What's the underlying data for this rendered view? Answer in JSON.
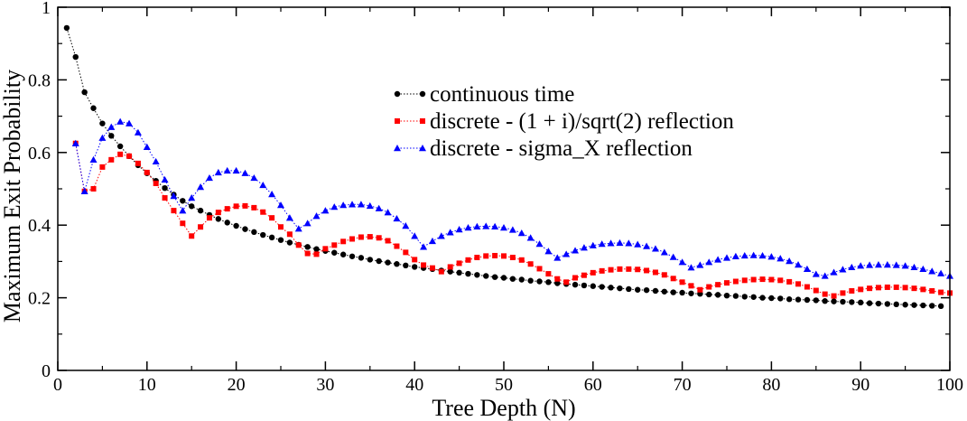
{
  "chart_data": {
    "type": "line",
    "title": "",
    "xlabel": "Tree Depth (N)",
    "ylabel": "Maximum Exit Probability",
    "xlim": [
      0,
      100
    ],
    "ylim": [
      0,
      1
    ],
    "x_ticks": [
      0,
      10,
      20,
      30,
      40,
      50,
      60,
      70,
      80,
      90,
      100
    ],
    "y_ticks": [
      0,
      0.2,
      0.4,
      0.6,
      0.8,
      1
    ],
    "y_tick_labels": [
      "0",
      "0.2",
      "0.4",
      "0.6",
      "0.8",
      "1"
    ],
    "grid": false,
    "legend_position": "top-center",
    "series": [
      {
        "name": "continuous time",
        "color": "#000000",
        "marker": "circle",
        "x": [
          1,
          2,
          3,
          4,
          5,
          6,
          7,
          8,
          9,
          10,
          11,
          12,
          13,
          14,
          15,
          16,
          17,
          18,
          19,
          20,
          21,
          22,
          23,
          24,
          25,
          26,
          27,
          28,
          29,
          30,
          31,
          32,
          33,
          34,
          35,
          36,
          37,
          38,
          39,
          40,
          41,
          42,
          43,
          44,
          45,
          46,
          47,
          48,
          49,
          50,
          51,
          52,
          53,
          54,
          55,
          56,
          57,
          58,
          59,
          60,
          61,
          62,
          63,
          64,
          65,
          66,
          67,
          68,
          69,
          70,
          71,
          72,
          73,
          74,
          75,
          76,
          77,
          78,
          79,
          80,
          81,
          82,
          83,
          84,
          85,
          86,
          87,
          88,
          89,
          90,
          91,
          92,
          93,
          94,
          95,
          96,
          97,
          98,
          99
        ],
        "y": [
          0.943,
          0.863,
          0.766,
          0.722,
          0.68,
          0.646,
          0.617,
          0.59,
          0.565,
          0.543,
          0.522,
          0.502,
          0.484,
          0.467,
          0.452,
          0.44,
          0.428,
          0.417,
          0.407,
          0.398,
          0.389,
          0.381,
          0.373,
          0.366,
          0.359,
          0.352,
          0.346,
          0.34,
          0.334,
          0.329,
          0.324,
          0.319,
          0.314,
          0.31,
          0.305,
          0.301,
          0.297,
          0.293,
          0.289,
          0.285,
          0.282,
          0.279,
          0.275,
          0.272,
          0.269,
          0.266,
          0.263,
          0.26,
          0.257,
          0.255,
          0.252,
          0.25,
          0.247,
          0.245,
          0.243,
          0.24,
          0.238,
          0.236,
          0.234,
          0.232,
          0.23,
          0.228,
          0.226,
          0.224,
          0.222,
          0.221,
          0.219,
          0.217,
          0.215,
          0.214,
          0.212,
          0.211,
          0.209,
          0.208,
          0.206,
          0.205,
          0.203,
          0.202,
          0.2,
          0.199,
          0.198,
          0.196,
          0.195,
          0.194,
          0.193,
          0.191,
          0.19,
          0.189,
          0.188,
          0.187,
          0.185,
          0.184,
          0.183,
          0.182,
          0.181,
          0.18,
          0.179,
          0.178,
          0.177
        ]
      },
      {
        "name": "discrete - (1 + i)/sqrt(2) reflection",
        "color": "#ff0000",
        "marker": "square",
        "x": [
          2,
          3,
          4,
          5,
          6,
          7,
          8,
          9,
          10,
          11,
          12,
          13,
          14,
          15,
          16,
          17,
          18,
          19,
          20,
          21,
          22,
          23,
          24,
          25,
          26,
          27,
          28,
          29,
          30,
          31,
          32,
          33,
          34,
          35,
          36,
          37,
          38,
          39,
          40,
          41,
          42,
          43,
          44,
          45,
          46,
          47,
          48,
          49,
          50,
          51,
          52,
          53,
          54,
          55,
          56,
          57,
          58,
          59,
          60,
          61,
          62,
          63,
          64,
          65,
          66,
          67,
          68,
          69,
          70,
          71,
          72,
          73,
          74,
          75,
          76,
          77,
          78,
          79,
          80,
          81,
          82,
          83,
          84,
          85,
          86,
          87,
          88,
          89,
          90,
          91,
          92,
          93,
          94,
          95,
          96,
          97,
          98,
          99,
          100
        ],
        "y": [
          0.625,
          0.493,
          0.5,
          0.56,
          0.58,
          0.595,
          0.59,
          0.57,
          0.545,
          0.515,
          0.475,
          0.44,
          0.405,
          0.37,
          0.395,
          0.42,
          0.435,
          0.445,
          0.452,
          0.453,
          0.448,
          0.436,
          0.42,
          0.395,
          0.375,
          0.345,
          0.322,
          0.32,
          0.335,
          0.345,
          0.355,
          0.362,
          0.367,
          0.368,
          0.365,
          0.357,
          0.342,
          0.325,
          0.305,
          0.29,
          0.282,
          0.272,
          0.285,
          0.295,
          0.304,
          0.311,
          0.315,
          0.316,
          0.315,
          0.311,
          0.304,
          0.293,
          0.28,
          0.266,
          0.252,
          0.243,
          0.255,
          0.262,
          0.269,
          0.274,
          0.277,
          0.279,
          0.279,
          0.278,
          0.275,
          0.27,
          0.263,
          0.253,
          0.243,
          0.233,
          0.222,
          0.23,
          0.236,
          0.241,
          0.245,
          0.248,
          0.25,
          0.251,
          0.25,
          0.248,
          0.244,
          0.238,
          0.23,
          0.22,
          0.21,
          0.205,
          0.213,
          0.219,
          0.223,
          0.226,
          0.228,
          0.229,
          0.229,
          0.228,
          0.226,
          0.223,
          0.219,
          0.215,
          0.213
        ]
      },
      {
        "name": "discrete - sigma_X reflection",
        "color": "#0000ff",
        "marker": "triangle",
        "x": [
          2,
          3,
          4,
          5,
          6,
          7,
          8,
          9,
          10,
          11,
          12,
          13,
          14,
          15,
          16,
          17,
          18,
          19,
          20,
          21,
          22,
          23,
          24,
          25,
          26,
          27,
          28,
          29,
          30,
          31,
          32,
          33,
          34,
          35,
          36,
          37,
          38,
          39,
          40,
          41,
          42,
          43,
          44,
          45,
          46,
          47,
          48,
          49,
          50,
          51,
          52,
          53,
          54,
          55,
          56,
          57,
          58,
          59,
          60,
          61,
          62,
          63,
          64,
          65,
          66,
          67,
          68,
          69,
          70,
          71,
          72,
          73,
          74,
          75,
          76,
          77,
          78,
          79,
          80,
          81,
          82,
          83,
          84,
          85,
          86,
          87,
          88,
          89,
          90,
          91,
          92,
          93,
          94,
          95,
          96,
          97,
          98,
          99,
          100
        ],
        "y": [
          0.625,
          0.493,
          0.58,
          0.64,
          0.67,
          0.685,
          0.68,
          0.655,
          0.615,
          0.575,
          0.525,
          0.48,
          0.44,
          0.475,
          0.505,
          0.53,
          0.545,
          0.55,
          0.55,
          0.543,
          0.53,
          0.51,
          0.485,
          0.455,
          0.42,
          0.39,
          0.405,
          0.425,
          0.44,
          0.45,
          0.455,
          0.457,
          0.457,
          0.453,
          0.446,
          0.435,
          0.418,
          0.398,
          0.37,
          0.34,
          0.356,
          0.37,
          0.38,
          0.388,
          0.393,
          0.396,
          0.397,
          0.396,
          0.393,
          0.387,
          0.378,
          0.365,
          0.348,
          0.328,
          0.31,
          0.32,
          0.33,
          0.338,
          0.344,
          0.348,
          0.35,
          0.351,
          0.35,
          0.347,
          0.342,
          0.335,
          0.325,
          0.312,
          0.298,
          0.283,
          0.29,
          0.298,
          0.305,
          0.31,
          0.314,
          0.316,
          0.317,
          0.316,
          0.313,
          0.308,
          0.301,
          0.291,
          0.279,
          0.265,
          0.26,
          0.27,
          0.278,
          0.284,
          0.288,
          0.29,
          0.291,
          0.291,
          0.29,
          0.288,
          0.284,
          0.279,
          0.273,
          0.267,
          0.26
        ]
      }
    ]
  }
}
